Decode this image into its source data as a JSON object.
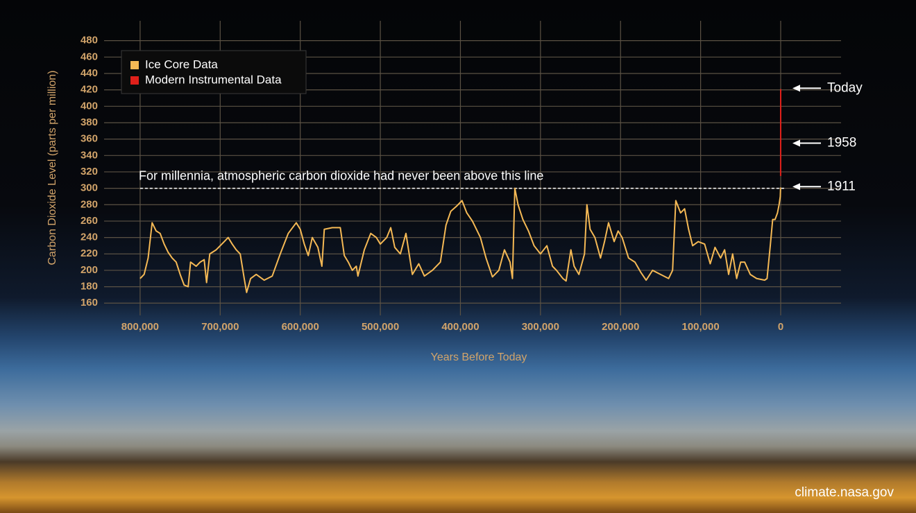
{
  "chart_data": {
    "type": "line",
    "x_label": "Years Before Today",
    "y_label": "Carbon Dioxide Level (parts per million)",
    "xlim": [
      845000,
      -75400
    ],
    "ylim": [
      145,
      500
    ],
    "xticks": [
      {
        "value": 800000,
        "label": "800,000"
      },
      {
        "value": 700000,
        "label": "700,000"
      },
      {
        "value": 600000,
        "label": "600,000"
      },
      {
        "value": 500000,
        "label": "500,000"
      },
      {
        "value": 400000,
        "label": "400,000"
      },
      {
        "value": 300000,
        "label": "300,000"
      },
      {
        "value": 200000,
        "label": "200,000"
      },
      {
        "value": 100000,
        "label": "100,000"
      },
      0
    ],
    "yticks": [
      160,
      180,
      200,
      220,
      240,
      260,
      280,
      300,
      320,
      340,
      360,
      380,
      400,
      420,
      440,
      460,
      480
    ],
    "grid": true,
    "legend": "upper left",
    "series": [
      {
        "name": "Ice Core Data",
        "color": "#f5b955",
        "x": [
          800000,
          795000,
          790000,
          785000,
          780000,
          775000,
          770000,
          765000,
          760000,
          755000,
          750000,
          745000,
          740000,
          737000,
          730000,
          725000,
          720000,
          717000,
          713000,
          705000,
          700000,
          695000,
          690000,
          685000,
          680000,
          675000,
          670000,
          667000,
          662000,
          655000,
          645000,
          635000,
          625000,
          615000,
          605000,
          600000,
          595000,
          590000,
          585000,
          578000,
          573000,
          570000,
          560000,
          550000,
          545000,
          540000,
          535000,
          530000,
          528000,
          520000,
          512000,
          505000,
          500000,
          492000,
          487000,
          482000,
          475000,
          468000,
          460000,
          452000,
          445000,
          435000,
          425000,
          418000,
          412000,
          405000,
          398000,
          392000,
          385000,
          375000,
          368000,
          360000,
          352000,
          345000,
          338000,
          335000,
          332000,
          328000,
          322000,
          315000,
          308000,
          300000,
          292000,
          285000,
          280000,
          272000,
          268000,
          262000,
          258000,
          252000,
          245000,
          242000,
          238000,
          232000,
          225000,
          220000,
          215000,
          208000,
          203000,
          198000,
          190000,
          182000,
          175000,
          168000,
          160000,
          150000,
          140000,
          135000,
          131000,
          125000,
          120000,
          115000,
          110000,
          103000,
          95000,
          88000,
          82000,
          75000,
          70000,
          65000,
          60000,
          55000,
          50000,
          45000,
          38000,
          30000,
          20000,
          17000,
          13000,
          10000,
          7000,
          4000,
          2000,
          500,
          113
        ],
        "values": [
          190,
          195,
          215,
          258,
          248,
          245,
          232,
          222,
          215,
          210,
          195,
          182,
          180,
          210,
          205,
          210,
          213,
          185,
          220,
          225,
          230,
          235,
          240,
          232,
          225,
          220,
          190,
          173,
          190,
          195,
          188,
          193,
          220,
          245,
          258,
          250,
          232,
          218,
          240,
          228,
          205,
          250,
          252,
          252,
          218,
          210,
          200,
          205,
          193,
          225,
          245,
          240,
          232,
          240,
          252,
          228,
          220,
          245,
          195,
          208,
          193,
          200,
          210,
          255,
          272,
          278,
          285,
          270,
          260,
          240,
          215,
          192,
          200,
          225,
          210,
          190,
          300,
          280,
          262,
          248,
          230,
          220,
          230,
          205,
          200,
          190,
          187,
          225,
          205,
          195,
          220,
          280,
          250,
          240,
          215,
          235,
          258,
          235,
          248,
          240,
          215,
          210,
          198,
          188,
          200,
          195,
          190,
          200,
          285,
          270,
          275,
          250,
          230,
          235,
          232,
          208,
          228,
          215,
          225,
          195,
          220,
          190,
          210,
          210,
          195,
          190,
          188,
          190,
          230,
          262,
          262,
          270,
          280,
          290,
          301
        ]
      },
      {
        "name": "Modern Instrumental Data",
        "color": "#e0201a",
        "x": [
          66,
          40,
          20,
          0
        ],
        "values": [
          315,
          340,
          370,
          421
        ]
      }
    ],
    "reference_line": {
      "y": 300,
      "label": "For millennia, atmospheric carbon dioxide had never been above this line"
    },
    "annotations": [
      {
        "label": "Today",
        "y": 422
      },
      {
        "label": "1958",
        "y": 355
      },
      {
        "label": "1911",
        "y": 302
      }
    ],
    "source": "climate.nasa.gov"
  }
}
